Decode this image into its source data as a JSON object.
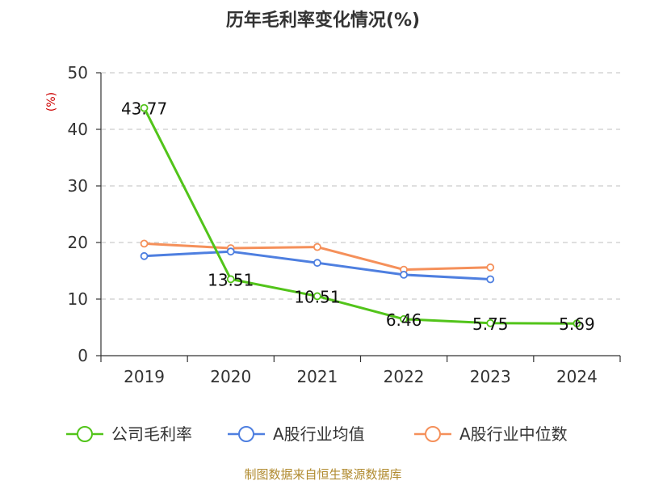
{
  "chart_data": {
    "type": "line",
    "title": "历年毛利率变化情况(%)",
    "ylabel": "(%)",
    "xlabel": "",
    "categories": [
      "2019",
      "2020",
      "2021",
      "2022",
      "2023",
      "2024"
    ],
    "ylim": [
      0,
      50
    ],
    "yticks": [
      0,
      10,
      20,
      30,
      40,
      50
    ],
    "grid": true,
    "legend_position": "bottom",
    "series": [
      {
        "name": "公司毛利率",
        "color": "#52c41a",
        "values": [
          43.77,
          13.51,
          10.51,
          6.46,
          5.75,
          5.69
        ],
        "show_labels": true
      },
      {
        "name": "A股行业均值",
        "color": "#4e7fe0",
        "values": [
          17.6,
          18.4,
          16.4,
          14.3,
          13.5,
          null
        ],
        "show_labels": false
      },
      {
        "name": "A股行业中位数",
        "color": "#f5905a",
        "values": [
          19.8,
          19.0,
          19.2,
          15.2,
          15.6,
          null
        ],
        "show_labels": false
      }
    ]
  },
  "source": "制图数据来自恒生聚源数据库"
}
